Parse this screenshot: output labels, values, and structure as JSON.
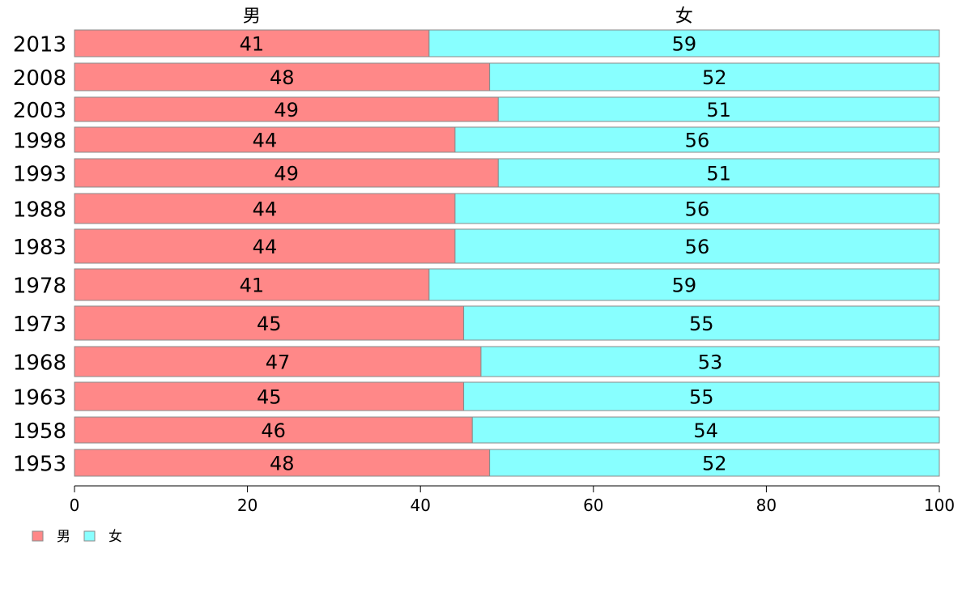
{
  "chart_data": {
    "type": "bar",
    "orientation": "horizontal",
    "stacked": "percent",
    "categories": [
      "2013",
      "2008",
      "2003",
      "1998",
      "1993",
      "1988",
      "1983",
      "1978",
      "1973",
      "1968",
      "1963",
      "1958",
      "1953"
    ],
    "series": [
      {
        "name": "男",
        "color": "#FF8888",
        "values": [
          41,
          48,
          49,
          44,
          49,
          44,
          44,
          41,
          45,
          47,
          45,
          46,
          48
        ],
        "labels": [
          "41",
          "48",
          "49",
          "44",
          "49",
          "44",
          "44",
          "41",
          "45",
          "47",
          "45",
          "46",
          "48"
        ]
      },
      {
        "name": "女",
        "color": "#88FFFF",
        "values": [
          59,
          52,
          51,
          56,
          51,
          56,
          56,
          59,
          55,
          53,
          55,
          54,
          52
        ],
        "labels": [
          "59",
          "52",
          "51",
          "56",
          "51",
          "56",
          "56",
          "59",
          "55",
          "53",
          "55",
          "54",
          "52"
        ]
      }
    ],
    "xlim": [
      0,
      100
    ],
    "xticks": [
      "0",
      "20",
      "40",
      "60",
      "80",
      "100"
    ],
    "grid": false,
    "legend": "bottom-left"
  }
}
